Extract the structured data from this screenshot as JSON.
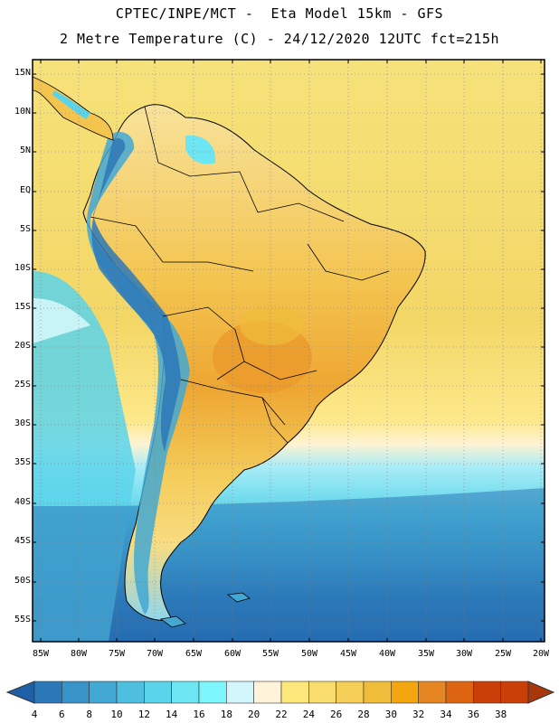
{
  "header": {
    "line1": "CPTEC/INPE/MCT -  Eta Model 15km - GFS",
    "line2": "2 Metre Temperature (C) - 24/12/2020 12UTC fct=215h"
  },
  "map": {
    "lat_labels": [
      "15N",
      "10N",
      "5N",
      "EQ",
      "5S",
      "10S",
      "15S",
      "20S",
      "25S",
      "30S",
      "35S",
      "40S",
      "45S",
      "50S",
      "55S"
    ],
    "lon_labels": [
      "85W",
      "80W",
      "75W",
      "70W",
      "65W",
      "60W",
      "55W",
      "50W",
      "45W",
      "40W",
      "35W",
      "30W",
      "25W",
      "20W"
    ],
    "gridlines": true,
    "coastline_color": "#000000"
  },
  "colorbar": {
    "labels": [
      "4",
      "6",
      "8",
      "10",
      "12",
      "14",
      "16",
      "18",
      "20",
      "22",
      "24",
      "26",
      "28",
      "30",
      "32",
      "34",
      "36",
      "38"
    ],
    "colors": [
      "#1f5fa8",
      "#2b78b8",
      "#3893c8",
      "#42a8d4",
      "#4ebfde",
      "#5ad4ea",
      "#6be6f2",
      "#7cf5fb",
      "#d2f6fb",
      "#fff4d9",
      "#fde77a",
      "#f8dc6d",
      "#f4ce56",
      "#f0bd3a",
      "#f3a60d",
      "#e68622",
      "#dd6511",
      "#c93f08",
      "#a8380a"
    ]
  }
}
